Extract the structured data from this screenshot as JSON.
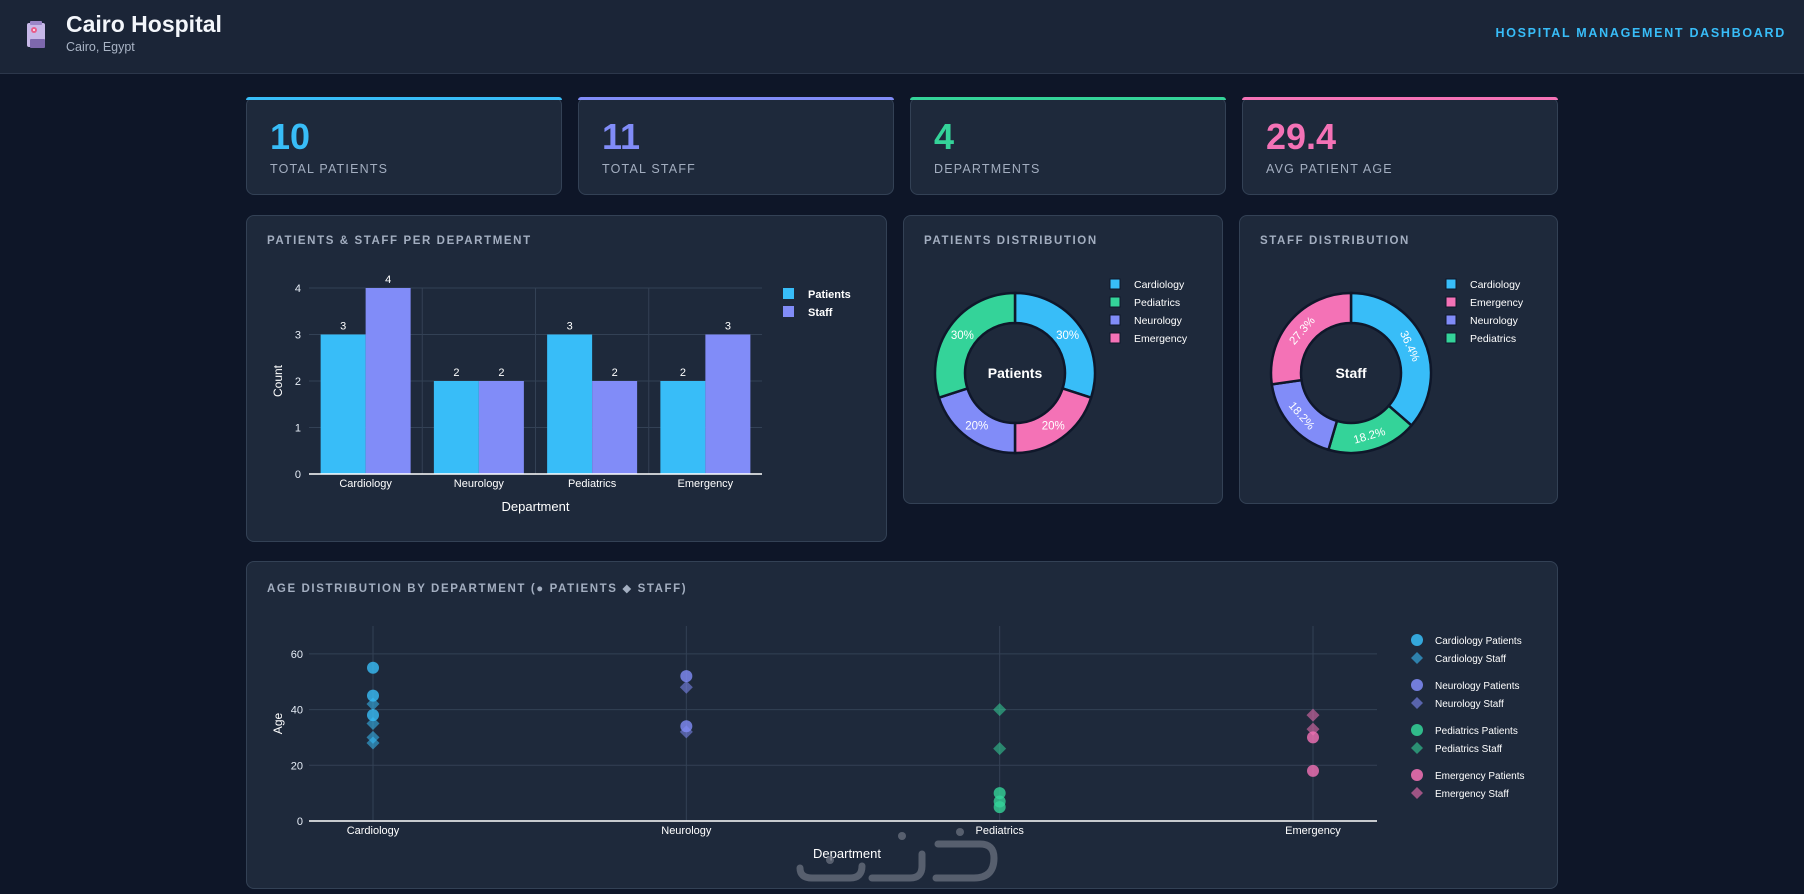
{
  "header": {
    "title": "Cairo Hospital",
    "subtitle": "Cairo, Egypt",
    "right_label": "HOSPITAL MANAGEMENT DASHBOARD",
    "logo_icon": "hospital-icon"
  },
  "stats": [
    {
      "value": "10",
      "label": "TOTAL PATIENTS",
      "color": "#38bdf8"
    },
    {
      "value": "11",
      "label": "TOTAL STAFF",
      "color": "#818cf8"
    },
    {
      "value": "4",
      "label": "DEPARTMENTS",
      "color": "#34d399"
    },
    {
      "value": "29.4",
      "label": "AVG PATIENT AGE",
      "color": "#f472b6"
    }
  ],
  "panels": {
    "bar_title": "PATIENTS & STAFF PER DEPARTMENT",
    "patients_title": "PATIENTS DISTRIBUTION",
    "staff_title": "STAFF DISTRIBUTION",
    "scatter_title": "AGE DISTRIBUTION BY DEPARTMENT (● PATIENTS ◆ STAFF)"
  },
  "colors": {
    "Cardiology": "#38bdf8",
    "Neurology": "#818cf8",
    "Pediatrics": "#34d399",
    "Emergency": "#f472b6"
  },
  "chart_data": [
    {
      "type": "bar",
      "categories": [
        "Cardiology",
        "Neurology",
        "Pediatrics",
        "Emergency"
      ],
      "series": [
        {
          "name": "Patients",
          "values": [
            3,
            2,
            3,
            2
          ],
          "color": "#38bdf8"
        },
        {
          "name": "Staff",
          "values": [
            4,
            2,
            2,
            3
          ],
          "color": "#818cf8"
        }
      ],
      "xlabel": "Department",
      "ylabel": "Count",
      "ylim": [
        0,
        4
      ],
      "yticks": [
        0,
        1,
        2,
        3,
        4
      ],
      "legend": "top-right",
      "grid": true
    },
    {
      "type": "pie",
      "center_label": "Patients",
      "labels": [
        "Cardiology",
        "Pediatrics",
        "Neurology",
        "Emergency"
      ],
      "values": [
        30,
        30,
        20,
        20
      ],
      "value_labels": [
        "30%",
        "30%",
        "20%",
        "20%"
      ],
      "slice_order": [
        "Cardiology",
        "Emergency",
        "Neurology",
        "Pediatrics"
      ],
      "legend": "top-right"
    },
    {
      "type": "pie",
      "center_label": "Staff",
      "labels": [
        "Cardiology",
        "Emergency",
        "Neurology",
        "Pediatrics"
      ],
      "values": [
        36.4,
        27.3,
        18.2,
        18.2
      ],
      "value_labels": [
        "36.4%",
        "27.3%",
        "18.2%",
        "18.2%"
      ],
      "slice_order": [
        "Cardiology",
        "Pediatrics",
        "Neurology",
        "Emergency"
      ],
      "legend": "top-right"
    },
    {
      "type": "scatter",
      "categories": [
        "Cardiology",
        "Neurology",
        "Pediatrics",
        "Emergency"
      ],
      "xlabel": "Department",
      "ylabel": "Age",
      "ylim": [
        0,
        70
      ],
      "yticks": [
        0,
        20,
        40,
        60
      ],
      "legend": "right",
      "series": [
        {
          "name": "Cardiology Patients",
          "dept": "Cardiology",
          "marker": "circle",
          "values": [
            55,
            45,
            38
          ]
        },
        {
          "name": "Cardiology Staff",
          "dept": "Cardiology",
          "marker": "diamond",
          "values": [
            42,
            35,
            30,
            28
          ]
        },
        {
          "name": "Neurology Patients",
          "dept": "Neurology",
          "marker": "circle",
          "values": [
            52,
            34
          ]
        },
        {
          "name": "Neurology Staff",
          "dept": "Neurology",
          "marker": "diamond",
          "values": [
            48,
            32
          ]
        },
        {
          "name": "Pediatrics Patients",
          "dept": "Pediatrics",
          "marker": "circle",
          "values": [
            10,
            7,
            5
          ]
        },
        {
          "name": "Pediatrics Staff",
          "dept": "Pediatrics",
          "marker": "diamond",
          "values": [
            40,
            26
          ]
        },
        {
          "name": "Emergency Patients",
          "dept": "Emergency",
          "marker": "circle",
          "values": [
            30,
            18
          ]
        },
        {
          "name": "Emergency Staff",
          "dept": "Emergency",
          "marker": "diamond",
          "values": [
            38,
            33
          ]
        }
      ]
    }
  ]
}
